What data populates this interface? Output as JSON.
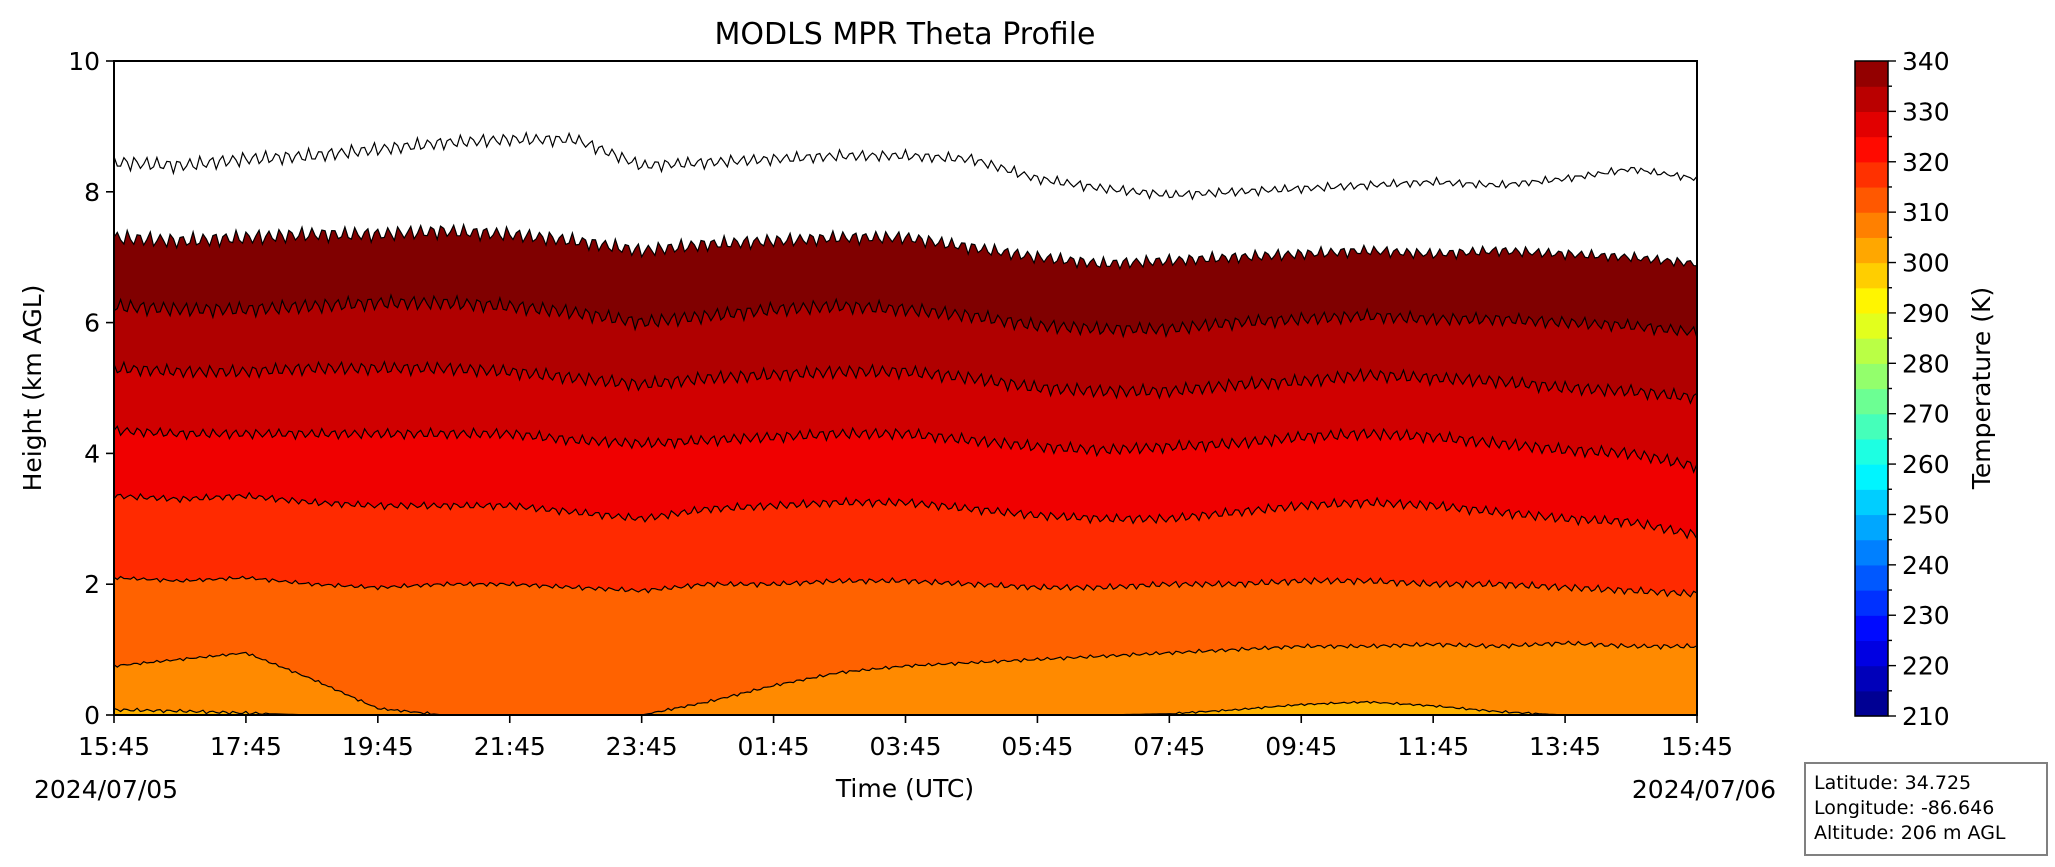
{
  "chart_data": {
    "type": "heatmap",
    "title": "MODLS MPR Theta Profile",
    "xlabel": "Time (UTC)",
    "ylabel": "Height (km AGL)",
    "x_ticks": [
      "15:45",
      "17:45",
      "19:45",
      "21:45",
      "23:45",
      "01:45",
      "03:45",
      "05:45",
      "07:45",
      "09:45",
      "11:45",
      "13:45",
      "15:45"
    ],
    "x_dates": {
      "start": "2024/07/05",
      "end": "2024/07/06"
    },
    "y_ticks": [
      "0",
      "2",
      "4",
      "6",
      "8",
      "10"
    ],
    "ylim": [
      0,
      10
    ],
    "xlim_hours": [
      0,
      24
    ],
    "colorbar": {
      "label": "Temperature (K)",
      "ticks": [
        "210",
        "220",
        "230",
        "240",
        "250",
        "260",
        "270",
        "280",
        "290",
        "300",
        "310",
        "320",
        "330",
        "340"
      ],
      "range": [
        210,
        340
      ],
      "step": 5,
      "colormap": "jet"
    },
    "contour_interval_K": 10,
    "series": [
      {
        "name": "",
        "level_K": 300,
        "height_km": [
          [
            0,
            0.08
          ],
          [
            1,
            0.06
          ],
          [
            2,
            0.03
          ],
          [
            3,
            0.0
          ],
          [
            4,
            0.0
          ],
          [
            5,
            0.0
          ],
          [
            6,
            0.0
          ],
          [
            7,
            0.0
          ],
          [
            8,
            0.0
          ],
          [
            9,
            0.0
          ],
          [
            10,
            0.0
          ],
          [
            11,
            0.0
          ],
          [
            12,
            0.0
          ],
          [
            13,
            0.0
          ],
          [
            14,
            0.0
          ],
          [
            15,
            0.0
          ],
          [
            16,
            0.02
          ],
          [
            17,
            0.08
          ],
          [
            18,
            0.16
          ],
          [
            19,
            0.2
          ],
          [
            20,
            0.14
          ],
          [
            21,
            0.05
          ],
          [
            22,
            0.0
          ],
          [
            23,
            0.0
          ],
          [
            24,
            0.0
          ]
        ]
      },
      {
        "name": "",
        "level_K": 310,
        "height_km": [
          [
            0,
            0.75
          ],
          [
            1,
            0.85
          ],
          [
            2,
            0.95
          ],
          [
            3,
            0.55
          ],
          [
            4,
            0.1
          ],
          [
            5,
            0.0
          ],
          [
            6,
            0.0
          ],
          [
            7,
            0.0
          ],
          [
            8,
            0.0
          ],
          [
            9,
            0.2
          ],
          [
            10,
            0.45
          ],
          [
            11,
            0.65
          ],
          [
            12,
            0.75
          ],
          [
            13,
            0.8
          ],
          [
            14,
            0.85
          ],
          [
            15,
            0.9
          ],
          [
            16,
            0.95
          ],
          [
            17,
            1.0
          ],
          [
            18,
            1.05
          ],
          [
            19,
            1.05
          ],
          [
            20,
            1.08
          ],
          [
            21,
            1.05
          ],
          [
            22,
            1.1
          ],
          [
            23,
            1.05
          ],
          [
            24,
            1.05
          ]
        ]
      },
      {
        "name": "",
        "level_K": 320,
        "height_km": [
          [
            0,
            2.1
          ],
          [
            1,
            2.05
          ],
          [
            2,
            2.1
          ],
          [
            3,
            2.0
          ],
          [
            4,
            1.95
          ],
          [
            5,
            2.0
          ],
          [
            6,
            2.0
          ],
          [
            7,
            1.95
          ],
          [
            8,
            1.9
          ],
          [
            9,
            2.0
          ],
          [
            10,
            2.0
          ],
          [
            11,
            2.05
          ],
          [
            12,
            2.05
          ],
          [
            13,
            2.0
          ],
          [
            14,
            1.95
          ],
          [
            15,
            1.95
          ],
          [
            16,
            2.0
          ],
          [
            17,
            2.0
          ],
          [
            18,
            2.05
          ],
          [
            19,
            2.05
          ],
          [
            20,
            2.0
          ],
          [
            21,
            2.0
          ],
          [
            22,
            1.95
          ],
          [
            23,
            1.9
          ],
          [
            24,
            1.85
          ]
        ]
      },
      {
        "name": "",
        "level_K": 330,
        "height_km": [
          [
            0,
            3.35
          ],
          [
            1,
            3.3
          ],
          [
            2,
            3.35
          ],
          [
            3,
            3.25
          ],
          [
            4,
            3.2
          ],
          [
            5,
            3.2
          ],
          [
            6,
            3.2
          ],
          [
            7,
            3.1
          ],
          [
            8,
            3.0
          ],
          [
            9,
            3.15
          ],
          [
            10,
            3.2
          ],
          [
            11,
            3.25
          ],
          [
            12,
            3.25
          ],
          [
            13,
            3.15
          ],
          [
            14,
            3.05
          ],
          [
            15,
            3.0
          ],
          [
            16,
            3.0
          ],
          [
            17,
            3.1
          ],
          [
            18,
            3.2
          ],
          [
            19,
            3.25
          ],
          [
            20,
            3.2
          ],
          [
            21,
            3.1
          ],
          [
            22,
            3.0
          ],
          [
            23,
            2.95
          ],
          [
            24,
            2.75
          ]
        ]
      },
      {
        "name": "",
        "level_K": 340,
        "height_km": [
          [
            0,
            4.35
          ],
          [
            1,
            4.3
          ],
          [
            2,
            4.3
          ],
          [
            3,
            4.3
          ],
          [
            4,
            4.3
          ],
          [
            5,
            4.3
          ],
          [
            6,
            4.3
          ],
          [
            7,
            4.2
          ],
          [
            8,
            4.15
          ],
          [
            9,
            4.2
          ],
          [
            10,
            4.25
          ],
          [
            11,
            4.3
          ],
          [
            12,
            4.3
          ],
          [
            13,
            4.2
          ],
          [
            14,
            4.1
          ],
          [
            15,
            4.05
          ],
          [
            16,
            4.1
          ],
          [
            17,
            4.15
          ],
          [
            18,
            4.25
          ],
          [
            19,
            4.3
          ],
          [
            20,
            4.25
          ],
          [
            21,
            4.15
          ],
          [
            22,
            4.05
          ],
          [
            23,
            4.0
          ],
          [
            24,
            3.8
          ]
        ]
      },
      {
        "name": "",
        "level_K": 350,
        "height_km": [
          [
            0,
            5.3
          ],
          [
            1,
            5.25
          ],
          [
            2,
            5.25
          ],
          [
            3,
            5.3
          ],
          [
            4,
            5.3
          ],
          [
            5,
            5.3
          ],
          [
            6,
            5.25
          ],
          [
            7,
            5.15
          ],
          [
            8,
            5.05
          ],
          [
            9,
            5.15
          ],
          [
            10,
            5.2
          ],
          [
            11,
            5.25
          ],
          [
            12,
            5.25
          ],
          [
            13,
            5.15
          ],
          [
            14,
            5.0
          ],
          [
            15,
            4.95
          ],
          [
            16,
            4.95
          ],
          [
            17,
            5.05
          ],
          [
            18,
            5.1
          ],
          [
            19,
            5.2
          ],
          [
            20,
            5.15
          ],
          [
            21,
            5.1
          ],
          [
            22,
            5.0
          ],
          [
            23,
            4.95
          ],
          [
            24,
            4.85
          ]
        ]
      },
      {
        "name": "",
        "level_K": 360,
        "height_km": [
          [
            0,
            6.25
          ],
          [
            1,
            6.2
          ],
          [
            2,
            6.2
          ],
          [
            3,
            6.25
          ],
          [
            4,
            6.3
          ],
          [
            5,
            6.3
          ],
          [
            6,
            6.25
          ],
          [
            7,
            6.15
          ],
          [
            8,
            6.0
          ],
          [
            9,
            6.1
          ],
          [
            10,
            6.2
          ],
          [
            11,
            6.25
          ],
          [
            12,
            6.2
          ],
          [
            13,
            6.1
          ],
          [
            14,
            5.95
          ],
          [
            15,
            5.9
          ],
          [
            16,
            5.9
          ],
          [
            17,
            6.0
          ],
          [
            18,
            6.05
          ],
          [
            19,
            6.1
          ],
          [
            20,
            6.05
          ],
          [
            21,
            6.05
          ],
          [
            22,
            6.0
          ],
          [
            23,
            5.95
          ],
          [
            24,
            5.85
          ]
        ]
      },
      {
        "name": "",
        "level_K": 370,
        "height_km": [
          [
            0,
            7.3
          ],
          [
            1,
            7.25
          ],
          [
            2,
            7.3
          ],
          [
            3,
            7.35
          ],
          [
            4,
            7.35
          ],
          [
            5,
            7.4
          ],
          [
            6,
            7.35
          ],
          [
            7,
            7.25
          ],
          [
            8,
            7.1
          ],
          [
            9,
            7.2
          ],
          [
            10,
            7.25
          ],
          [
            11,
            7.3
          ],
          [
            12,
            7.3
          ],
          [
            13,
            7.15
          ],
          [
            14,
            7.0
          ],
          [
            15,
            6.9
          ],
          [
            16,
            6.95
          ],
          [
            17,
            7.0
          ],
          [
            18,
            7.05
          ],
          [
            19,
            7.1
          ],
          [
            20,
            7.05
          ],
          [
            21,
            7.1
          ],
          [
            22,
            7.05
          ],
          [
            23,
            7.0
          ],
          [
            24,
            6.9
          ]
        ]
      },
      {
        "name": "",
        "level_K": 380,
        "height_km": [
          [
            0,
            8.45
          ],
          [
            1,
            8.4
          ],
          [
            2,
            8.5
          ],
          [
            3,
            8.55
          ],
          [
            4,
            8.65
          ],
          [
            5,
            8.75
          ],
          [
            6,
            8.8
          ],
          [
            7,
            8.8
          ],
          [
            8,
            8.4
          ],
          [
            9,
            8.45
          ],
          [
            10,
            8.5
          ],
          [
            11,
            8.55
          ],
          [
            12,
            8.55
          ],
          [
            13,
            8.5
          ],
          [
            14,
            8.2
          ],
          [
            15,
            8.05
          ],
          [
            16,
            7.95
          ],
          [
            17,
            8.0
          ],
          [
            18,
            8.05
          ],
          [
            19,
            8.1
          ],
          [
            20,
            8.15
          ],
          [
            21,
            8.1
          ],
          [
            22,
            8.2
          ],
          [
            23,
            8.35
          ],
          [
            24,
            8.2
          ]
        ]
      }
    ],
    "fill_colors": [
      "#ffb300",
      "#ff8a00",
      "#ff6200",
      "#ff2a00",
      "#f00000",
      "#d00000",
      "#b00000",
      "#800000"
    ],
    "grid": false
  },
  "info_box": {
    "latitude": "Latitude: 34.725",
    "longitude": "Longitude: -86.646",
    "altitude": "Altitude: 206 m AGL"
  }
}
